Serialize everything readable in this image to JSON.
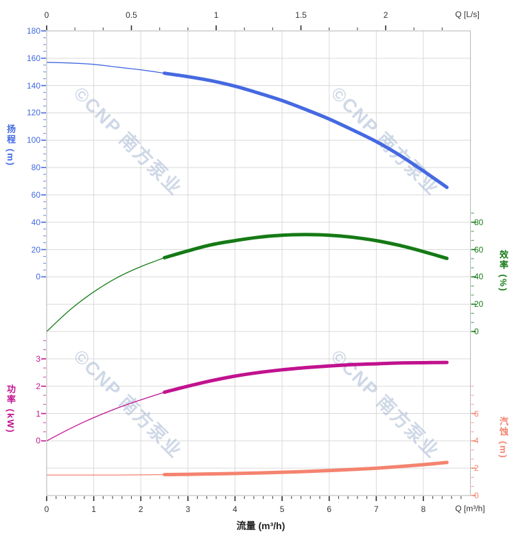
{
  "watermark": {
    "text": "©CNP 南方泵业",
    "color": "#9fb1cf"
  },
  "chart_data": {
    "type": "line",
    "title": "",
    "x_bottom": {
      "unit_label": "Q [m³/h]",
      "axis_title": "流量 (m³/h)",
      "ticks": [
        0,
        1,
        2,
        3,
        4,
        5,
        6,
        7,
        8
      ],
      "range": [
        0,
        9
      ],
      "minors_per_major": 4,
      "minor_extend": 4,
      "color": "#333333"
    },
    "x_top": {
      "unit_label": "Q [L/s]",
      "ticks": [
        0,
        0.5,
        1,
        1.5,
        2
      ],
      "range": [
        0,
        2.5
      ],
      "minors_per_major": 2,
      "minor_extend": 2,
      "color": "#333333"
    },
    "y_axes": [
      {
        "id": "head",
        "axis_title": "扬程 (m)",
        "side": "left",
        "color": "#4169e1",
        "ticks": [
          180,
          160,
          140,
          120,
          100,
          80,
          60,
          40,
          20,
          0
        ],
        "grids": [
          0,
          1,
          2,
          3,
          4,
          5,
          6,
          7,
          8,
          9
        ],
        "minors_per_major": 3,
        "minor_extend": 0
      },
      {
        "id": "power",
        "axis_title": "功率 (kW)",
        "side": "left",
        "color": "#c1128f",
        "ticks": [
          3,
          2,
          1,
          0
        ],
        "grids": [
          12,
          13,
          14,
          15
        ],
        "minors_per_major": 2,
        "minor_extend": 2
      },
      {
        "id": "eff",
        "axis_title": "效率 (%)",
        "side": "right",
        "color": "#157a15",
        "ticks": [
          80,
          60,
          40,
          20,
          0
        ],
        "grids": [
          7,
          8,
          9,
          10,
          11
        ],
        "minors_per_major": 2,
        "minor_extend": 1
      },
      {
        "id": "npsh",
        "axis_title": "汽蚀 (m)",
        "side": "right",
        "color": "#f4836f",
        "ticks": [
          6,
          4,
          2,
          0
        ],
        "grids": [
          14,
          15,
          16,
          17
        ],
        "minors_per_major": 2,
        "minor_extend": 3
      }
    ],
    "op_split": 2.5,
    "x": [
      0,
      0.5,
      1,
      1.5,
      2,
      2.5,
      3,
      3.5,
      4,
      4.5,
      5,
      5.5,
      6,
      6.5,
      7,
      7.5,
      8,
      8.5
    ],
    "series": [
      {
        "name": "head",
        "axis": "head",
        "color": "#4569e1",
        "values": [
          157,
          156.5,
          155.5,
          153.5,
          151.5,
          149,
          146.5,
          143.5,
          139.5,
          134.5,
          129,
          122.5,
          115.5,
          107.5,
          99,
          89,
          77.5,
          65.5
        ]
      },
      {
        "name": "efficiency",
        "axis": "eff",
        "color": "#157a15",
        "values": [
          0,
          16,
          29,
          39.5,
          47.5,
          54,
          59,
          63.5,
          66.5,
          69,
          70.5,
          71,
          70.5,
          69,
          66.5,
          63,
          58.5,
          53.5
        ]
      },
      {
        "name": "power",
        "axis": "power",
        "color": "#c1128f",
        "values": [
          0,
          0.45,
          0.85,
          1.2,
          1.5,
          1.78,
          2.0,
          2.2,
          2.37,
          2.5,
          2.6,
          2.68,
          2.74,
          2.79,
          2.82,
          2.85,
          2.86,
          2.87
        ]
      },
      {
        "name": "npsh",
        "axis": "npsh",
        "color": "#f4836f",
        "values": [
          1.5,
          1.5,
          1.5,
          1.5,
          1.51,
          1.53,
          1.55,
          1.58,
          1.61,
          1.65,
          1.7,
          1.76,
          1.83,
          1.91,
          2.0,
          2.12,
          2.26,
          2.42
        ]
      }
    ]
  }
}
